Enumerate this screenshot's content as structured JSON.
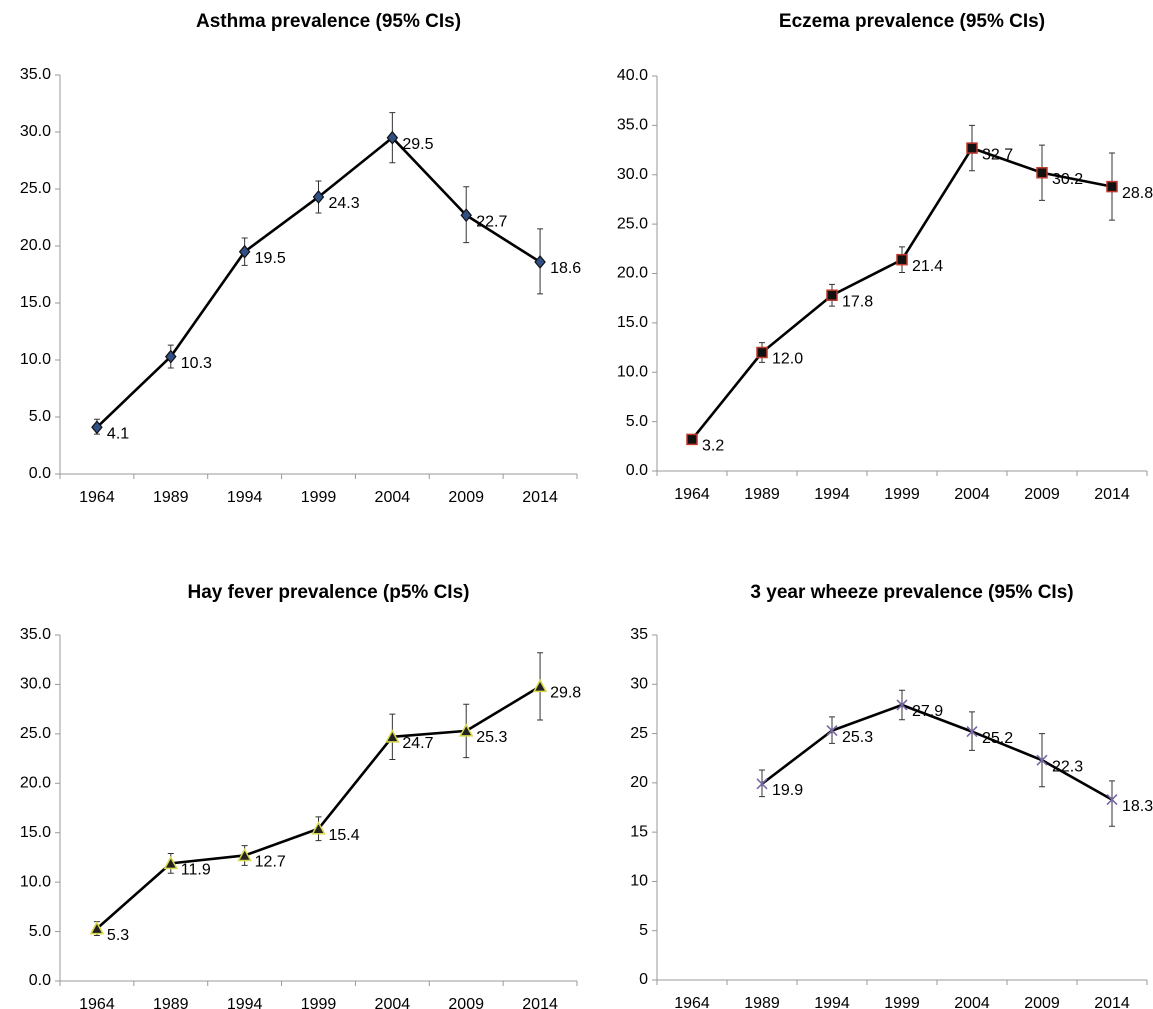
{
  "chart_data": [
    {
      "type": "line",
      "title": "Asthma prevalence (95% CIs)",
      "categories": [
        "1964",
        "1989",
        "1994",
        "1999",
        "2004",
        "2009",
        "2014"
      ],
      "values": [
        4.1,
        10.3,
        19.5,
        24.3,
        29.5,
        22.7,
        18.6
      ],
      "ci_low": [
        3.5,
        9.3,
        18.3,
        22.9,
        27.3,
        20.3,
        15.8
      ],
      "ci_high": [
        4.8,
        11.3,
        20.7,
        25.7,
        31.7,
        25.2,
        21.5
      ],
      "marker": "diamond",
      "color": "#2f4f85",
      "ylim": [
        0,
        35
      ],
      "yticks": [
        {
          "value": 0,
          "label": "0.0"
        },
        {
          "value": 5,
          "label": "5.0"
        },
        {
          "value": 10,
          "label": "10.0"
        },
        {
          "value": 15,
          "label": "15.0"
        },
        {
          "value": 20,
          "label": "20.0"
        },
        {
          "value": 25,
          "label": "25.0"
        },
        {
          "value": 30,
          "label": "30.0"
        },
        {
          "value": 35,
          "label": "35.0"
        }
      ]
    },
    {
      "type": "line",
      "title": "Eczema prevalence (95% CIs)",
      "categories": [
        "1964",
        "1989",
        "1994",
        "1999",
        "2004",
        "2009",
        "2014"
      ],
      "values": [
        3.2,
        12,
        17.8,
        21.4,
        32.7,
        30.2,
        28.8
      ],
      "value_labels": [
        "3.2",
        "12.0",
        "17.8",
        "21.4",
        "32.7",
        "30.2",
        "28.8"
      ],
      "ci_low": [
        2.8,
        11.0,
        16.7,
        20.1,
        30.4,
        27.4,
        25.4
      ],
      "ci_high": [
        3.7,
        13.0,
        18.9,
        22.7,
        35.0,
        33.0,
        32.2
      ],
      "marker": "square",
      "color": "#c0392b",
      "ylim": [
        0,
        40
      ],
      "yticks": [
        {
          "value": 0,
          "label": "0.0"
        },
        {
          "value": 5,
          "label": "5.0"
        },
        {
          "value": 10,
          "label": "10.0"
        },
        {
          "value": 15,
          "label": "15.0"
        },
        {
          "value": 20,
          "label": "20.0"
        },
        {
          "value": 25,
          "label": "25.0"
        },
        {
          "value": 30,
          "label": "30.0"
        },
        {
          "value": 35,
          "label": "35.0"
        },
        {
          "value": 40,
          "label": "40.0"
        }
      ]
    },
    {
      "type": "line",
      "title": "Hay fever prevalence (p5% CIs)",
      "categories": [
        "1964",
        "1989",
        "1994",
        "1999",
        "2004",
        "2009",
        "2014"
      ],
      "values": [
        5.3,
        11.9,
        12.7,
        15.4,
        24.7,
        25.3,
        29.8
      ],
      "ci_low": [
        4.6,
        10.9,
        11.7,
        14.2,
        22.4,
        22.6,
        26.4
      ],
      "ci_high": [
        6.0,
        12.9,
        13.7,
        16.6,
        27.0,
        28.0,
        33.2
      ],
      "marker": "triangle",
      "color": "#d8d84a",
      "ylim": [
        0,
        35
      ],
      "yticks": [
        {
          "value": 0,
          "label": "0.0"
        },
        {
          "value": 5,
          "label": "5.0"
        },
        {
          "value": 10,
          "label": "10.0"
        },
        {
          "value": 15,
          "label": "15.0"
        },
        {
          "value": 20,
          "label": "20.0"
        },
        {
          "value": 25,
          "label": "25.0"
        },
        {
          "value": 30,
          "label": "30.0"
        },
        {
          "value": 35,
          "label": "35.0"
        }
      ]
    },
    {
      "type": "line",
      "title": "3 year wheeze prevalence (95% CIs)",
      "categories": [
        "1964",
        "1989",
        "1994",
        "1999",
        "2004",
        "2009",
        "2014"
      ],
      "values": [
        null,
        19.9,
        25.3,
        27.9,
        25.2,
        22.3,
        18.3
      ],
      "ci_low": [
        null,
        18.6,
        24.0,
        26.4,
        23.3,
        19.6,
        15.6
      ],
      "ci_high": [
        null,
        21.3,
        26.7,
        29.4,
        27.2,
        25.0,
        20.2
      ],
      "marker": "x",
      "color": "#7a68a8",
      "ylim": [
        0,
        35
      ],
      "yticks": [
        0,
        5,
        10,
        15,
        20,
        25,
        30,
        35
      ]
    }
  ]
}
